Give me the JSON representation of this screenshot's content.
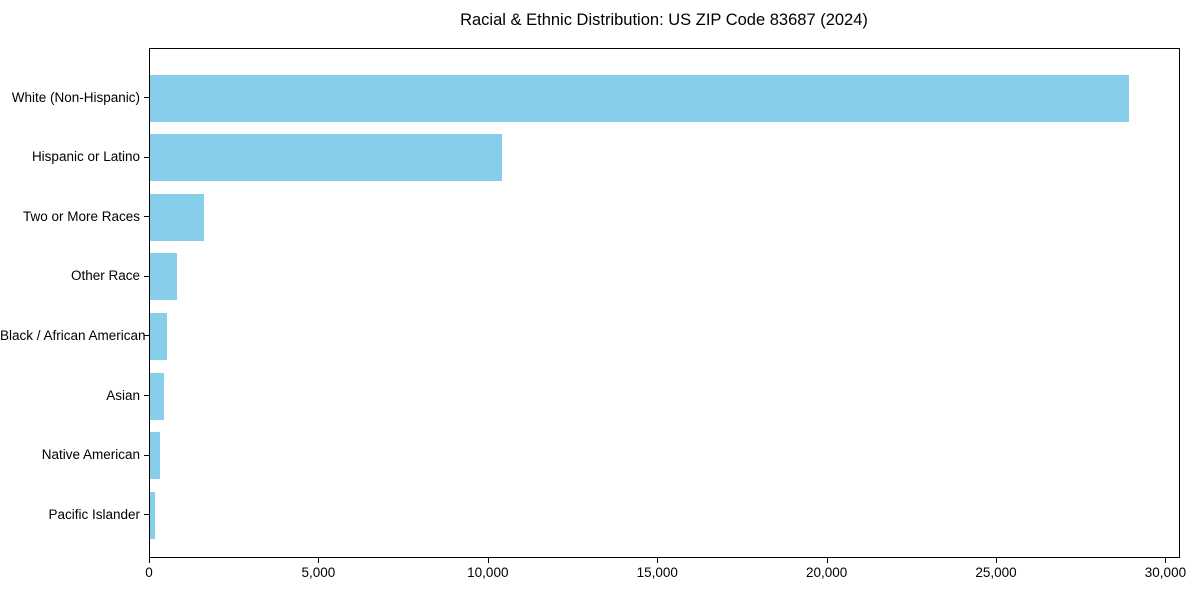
{
  "chart_data": {
    "type": "bar",
    "orientation": "horizontal",
    "title": "Racial & Ethnic Distribution: US ZIP Code 83687 (2024)",
    "categories": [
      "White (Non-Hispanic)",
      "Hispanic or Latino",
      "Two or More Races",
      "Other Race",
      "Black / African American",
      "Asian",
      "Native American",
      "Pacific Islander"
    ],
    "values": [
      28900,
      10400,
      1600,
      800,
      500,
      400,
      300,
      140
    ],
    "bar_color": "#87CEEB",
    "xlabel": "",
    "ylabel": "",
    "xlim": [
      0,
      30400
    ],
    "x_ticks": [
      0,
      5000,
      10000,
      15000,
      20000,
      25000,
      30000
    ],
    "x_tick_labels": [
      "0",
      "5,000",
      "10,000",
      "15,000",
      "20,000",
      "25,000",
      "30,000"
    ],
    "grid": false,
    "legend": null,
    "axis_color": "#000000",
    "background_color": "#ffffff"
  }
}
